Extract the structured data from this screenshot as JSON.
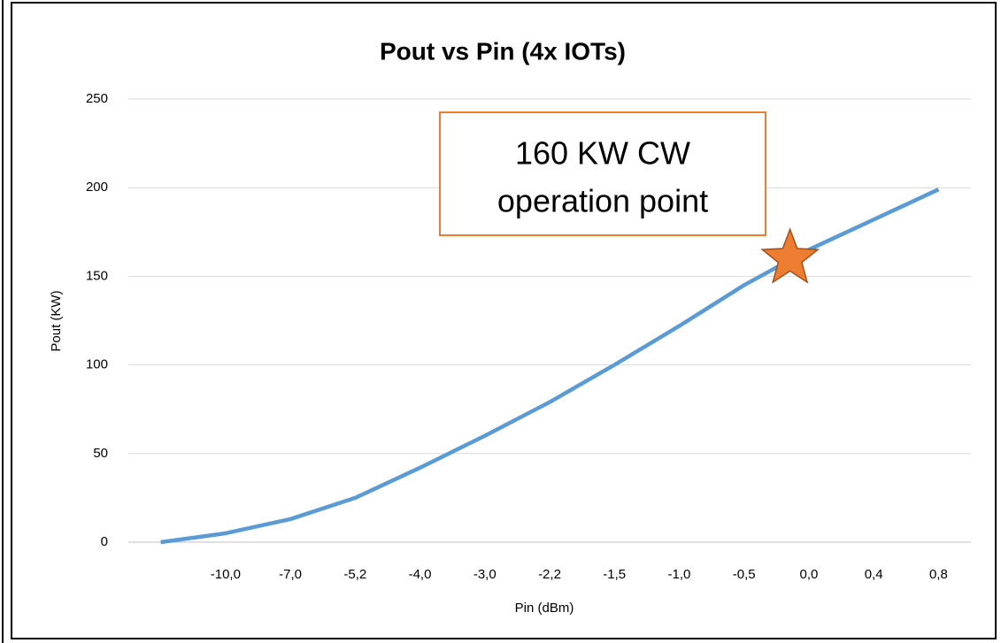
{
  "chart_data": {
    "type": "line",
    "title": "Pout vs Pin (4x IOTs)",
    "x_label": "Pin (dBm)",
    "y_label": "Pout (KW)",
    "categories": [
      null,
      "-10,0",
      "-7,0",
      "-5,2",
      "-4,0",
      "-3,0",
      "-2,2",
      "-1,5",
      "-1,0",
      "-0,5",
      "0,0",
      "0,4",
      "0,8"
    ],
    "series": [
      {
        "name": "Pout",
        "color": "#5b9bd5",
        "values": [
          0,
          5,
          13,
          25,
          42,
          60,
          79,
          100,
          122,
          145,
          165,
          182,
          199
        ]
      }
    ],
    "ylim": [
      0,
      250
    ],
    "yticks": [
      0,
      50,
      100,
      150,
      200,
      250
    ],
    "grid": true,
    "annotation": {
      "lines": [
        "160 KW CW",
        "operation point"
      ],
      "value": 160,
      "color": "#ed7d31"
    }
  }
}
